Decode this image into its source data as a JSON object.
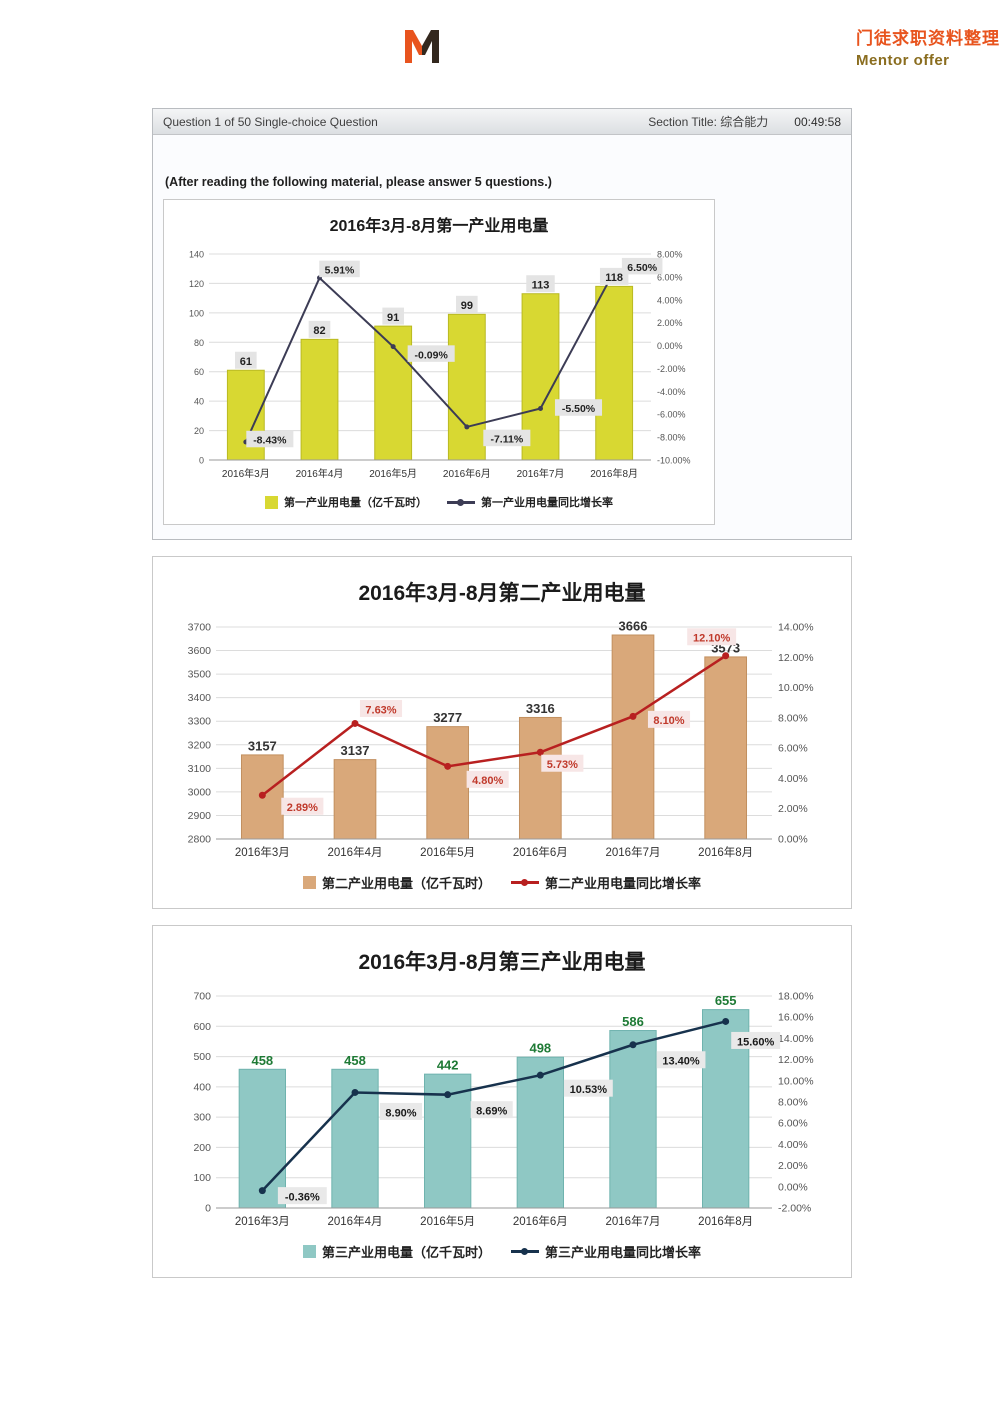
{
  "branding": {
    "title": "门徒求职资料整理",
    "subtitle": "Mentor offer",
    "title_color": "#e8541e",
    "subtitle_color": "#8a6d1f"
  },
  "quiz_header": {
    "question_progress": "Question 1 of 50 Single-choice Question",
    "section_title": "Section Title: 综合能力",
    "timer": "00:49:58"
  },
  "instruction": "(After reading the following material, please answer 5 questions.)",
  "chart_data": [
    {
      "type": "bar+line",
      "title": "2016年3月-8月第一产业用电量",
      "categories": [
        "2016年3月",
        "2016年4月",
        "2016年5月",
        "2016年6月",
        "2016年7月",
        "2016年8月"
      ],
      "series": [
        {
          "name": "第一产业用电量（亿千瓦时）",
          "type": "bar",
          "axis": "left",
          "color": "#d8d832",
          "values": [
            61,
            82,
            91,
            99,
            113,
            118
          ]
        },
        {
          "name": "第一产业用电量同比增长率",
          "type": "line",
          "axis": "right",
          "color": "#3c3c55",
          "values": [
            -8.43,
            5.91,
            -0.09,
            -7.11,
            -5.5,
            6.5
          ]
        }
      ],
      "bar_labels": [
        "61",
        "82",
        "91",
        "99",
        "113",
        "118"
      ],
      "rate_labels": [
        "-8.43%",
        "5.91%",
        "-0.09%",
        "-7.11%",
        "-5.50%",
        "6.50%"
      ],
      "left_axis": {
        "min": 0,
        "max": 140,
        "step": 20
      },
      "right_axis": {
        "min": -10,
        "max": 8,
        "step": 2,
        "suffix": "%"
      },
      "legend_position": "bottom",
      "grid": true
    },
    {
      "type": "bar+line",
      "title": "2016年3月-8月第二产业用电量",
      "categories": [
        "2016年3月",
        "2016年4月",
        "2016年5月",
        "2016年6月",
        "2016年7月",
        "2016年8月"
      ],
      "series": [
        {
          "name": "第二产业用电量（亿千瓦时）",
          "type": "bar",
          "axis": "left",
          "color": "#d9a87a",
          "values": [
            3157,
            3137,
            3277,
            3316,
            3666,
            3573
          ]
        },
        {
          "name": "第二产业用电量同比增长率",
          "type": "line",
          "axis": "right",
          "color": "#b82020",
          "values": [
            2.89,
            7.63,
            4.8,
            5.73,
            8.1,
            12.1
          ]
        }
      ],
      "bar_labels": [
        "3157",
        "3137",
        "3277",
        "3316",
        "3666",
        "3573"
      ],
      "rate_labels": [
        "2.89%",
        "7.63%",
        "4.80%",
        "5.73%",
        "8.10%",
        "12.10%"
      ],
      "left_axis": {
        "min": 2800,
        "max": 3700,
        "step": 100
      },
      "right_axis": {
        "min": 0,
        "max": 14,
        "step": 2,
        "suffix": "%"
      },
      "legend_position": "bottom",
      "grid": true
    },
    {
      "type": "bar+line",
      "title": "2016年3月-8月第三产业用电量",
      "categories": [
        "2016年3月",
        "2016年4月",
        "2016年5月",
        "2016年6月",
        "2016年7月",
        "2016年8月"
      ],
      "series": [
        {
          "name": "第三产业用电量（亿千瓦时）",
          "type": "bar",
          "axis": "left",
          "color": "#8fc8c4",
          "values": [
            458,
            458,
            442,
            498,
            586,
            655
          ]
        },
        {
          "name": "第三产业用电量同比增长率",
          "type": "line",
          "axis": "right",
          "color": "#17324d",
          "values": [
            -0.36,
            8.9,
            8.69,
            10.53,
            13.4,
            15.6
          ]
        }
      ],
      "bar_labels": [
        "458",
        "458",
        "442",
        "498",
        "586",
        "655"
      ],
      "rate_labels": [
        "-0.36%",
        "8.90%",
        "8.69%",
        "10.53%",
        "13.40%",
        "15.60%"
      ],
      "left_axis": {
        "min": 0,
        "max": 700,
        "step": 100
      },
      "right_axis": {
        "min": -2,
        "max": 18,
        "step": 2,
        "suffix": "%"
      },
      "legend_position": "bottom",
      "grid": true
    }
  ]
}
